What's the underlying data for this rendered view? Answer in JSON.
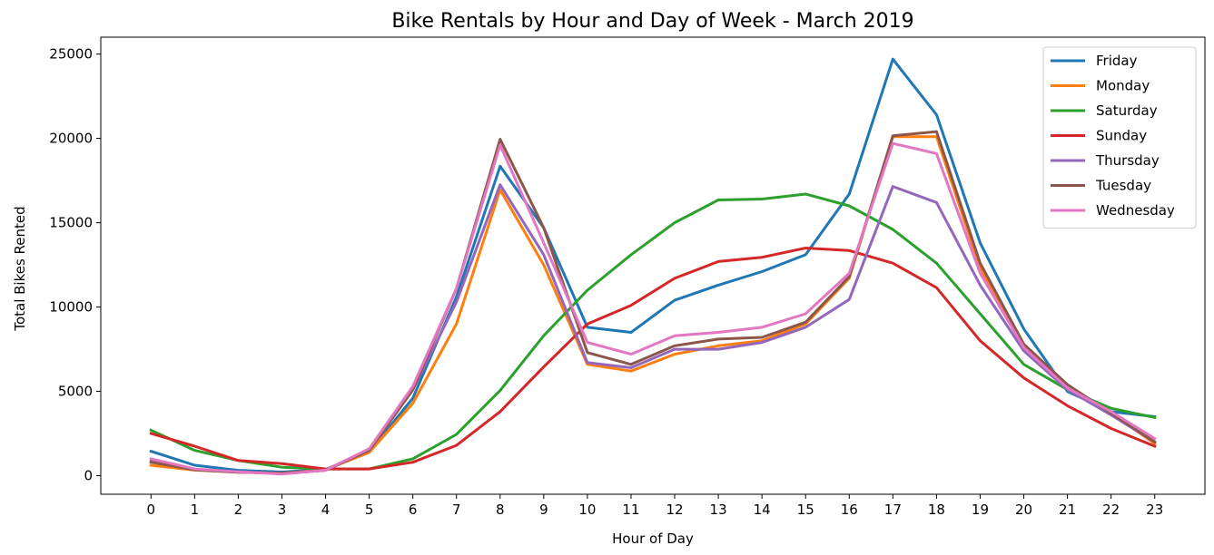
{
  "chart_data": {
    "type": "line",
    "title": "Bike Rentals by Hour and Day of Week - March 2019",
    "xlabel": "Hour of Day",
    "ylabel": "Total Bikes Rented",
    "x": [
      0,
      1,
      2,
      3,
      4,
      5,
      6,
      7,
      8,
      9,
      10,
      11,
      12,
      13,
      14,
      15,
      16,
      17,
      18,
      19,
      20,
      21,
      22,
      23
    ],
    "xlim": [
      -1.15,
      24.15
    ],
    "ylim": [
      -1100,
      26000
    ],
    "yticks": [
      0,
      5000,
      10000,
      15000,
      20000,
      25000
    ],
    "grid": false,
    "legend_position": "top-right",
    "series": [
      {
        "name": "Friday",
        "color": "#1f77b4",
        "values": [
          1450,
          620,
          320,
          220,
          380,
          1400,
          4600,
          10600,
          18350,
          14700,
          8800,
          8500,
          10400,
          11300,
          12100,
          13100,
          16700,
          24700,
          21400,
          13800,
          8700,
          5000,
          3800,
          3500
        ]
      },
      {
        "name": "Monday",
        "color": "#ff7f0e",
        "values": [
          620,
          330,
          200,
          150,
          350,
          1380,
          4300,
          9000,
          16950,
          12500,
          6600,
          6200,
          7200,
          7700,
          8000,
          9000,
          11700,
          20100,
          20100,
          12300,
          7600,
          5100,
          3700,
          1900
        ]
      },
      {
        "name": "Saturday",
        "color": "#2ca02c",
        "values": [
          2700,
          1500,
          900,
          500,
          400,
          400,
          1000,
          2450,
          5050,
          8300,
          11000,
          13100,
          15000,
          16350,
          16400,
          16700,
          16000,
          14600,
          12600,
          9600,
          6600,
          5100,
          4000,
          3450
        ]
      },
      {
        "name": "Sunday",
        "color": "#d62728",
        "values": [
          2500,
          1750,
          900,
          720,
          400,
          400,
          800,
          1800,
          3800,
          6450,
          9000,
          10100,
          11700,
          12700,
          12950,
          13500,
          13350,
          12600,
          11150,
          8000,
          5800,
          4150,
          2800,
          1750
        ]
      },
      {
        "name": "Thursday",
        "color": "#9467bd",
        "values": [
          850,
          350,
          230,
          120,
          320,
          1500,
          5100,
          10300,
          17250,
          13100,
          6700,
          6400,
          7500,
          7500,
          7900,
          8800,
          10450,
          17150,
          16200,
          11300,
          7400,
          5100,
          3600,
          2000
        ]
      },
      {
        "name": "Tuesday",
        "color": "#8c564b",
        "values": [
          800,
          350,
          200,
          150,
          330,
          1500,
          5100,
          11100,
          19950,
          14700,
          7300,
          6600,
          7700,
          8100,
          8200,
          9100,
          11800,
          20150,
          20400,
          12600,
          7800,
          5400,
          3700,
          2000
        ]
      },
      {
        "name": "Wednesday",
        "color": "#e377c2",
        "values": [
          1000,
          400,
          230,
          100,
          330,
          1600,
          5300,
          11100,
          19600,
          13800,
          7900,
          7200,
          8300,
          8500,
          8800,
          9600,
          12000,
          19700,
          19100,
          12000,
          7600,
          5200,
          3800,
          2200
        ]
      }
    ]
  }
}
